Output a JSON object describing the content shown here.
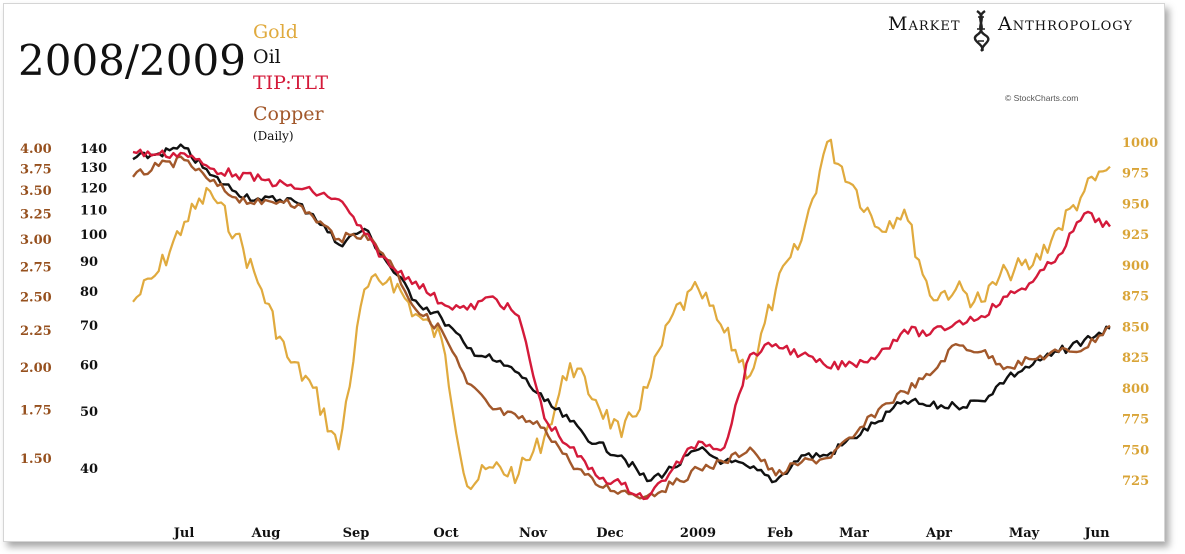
{
  "brand": {
    "word1": "Market",
    "word2": "Anthropology",
    "logo_icon": "dna-helix-icon"
  },
  "credit": "© StockCharts.com",
  "chart_data": {
    "type": "line",
    "title": "2008/2009",
    "subtitle": "(Daily)",
    "legend_placement": "top-left",
    "grid": false,
    "x_ticks": [
      "Jul",
      "Aug",
      "Sep",
      "Oct",
      "Nov",
      "Dec",
      "2009",
      "Feb",
      "Mar",
      "Apr",
      "May",
      "Jun"
    ],
    "x_range": [
      "Jun",
      "Jun"
    ],
    "y_axes": {
      "copper_left": {
        "color": "#96501e",
        "ticks": [
          "4.00",
          "3.75",
          "3.50",
          "3.25",
          "3.00",
          "2.75",
          "2.50",
          "2.25",
          "2.00",
          "1.75",
          "1.50"
        ],
        "scale": "log"
      },
      "oil_left": {
        "color": "#111111",
        "ticks": [
          "140",
          "130",
          "120",
          "110",
          "100",
          "90",
          "80",
          "70",
          "60",
          "50",
          "40"
        ],
        "scale": "log"
      },
      "gold_right": {
        "color": "#d9a437",
        "ticks": [
          "1000",
          "975",
          "950",
          "925",
          "900",
          "875",
          "850",
          "825",
          "800",
          "775",
          "750",
          "725"
        ],
        "ylim": [
          710,
          1010
        ]
      }
    },
    "series": [
      {
        "name": "Gold",
        "color": "#e0aa3e",
        "axis": "gold_right",
        "x": [
          "Jun",
          "Jul",
          "Jul",
          "Aug",
          "Aug",
          "Aug",
          "Sep",
          "Sep",
          "Sep",
          "Oct",
          "Oct",
          "Oct",
          "Oct",
          "Nov",
          "Nov",
          "Nov",
          "Nov",
          "Dec",
          "Dec",
          "Dec",
          "Dec",
          "2009",
          "2009",
          "2009",
          "Feb",
          "Feb",
          "Feb",
          "Mar",
          "Mar",
          "Mar",
          "Mar",
          "Apr",
          "Apr",
          "Apr",
          "May",
          "May",
          "May",
          "Jun",
          "Jun"
        ],
        "values": [
          870,
          895,
          935,
          960,
          925,
          880,
          825,
          800,
          750,
          880,
          890,
          860,
          840,
          720,
          735,
          730,
          760,
          820,
          790,
          760,
          800,
          860,
          880,
          845,
          810,
          880,
          920,
          1000,
          965,
          930,
          945,
          875,
          880,
          870,
          895,
          900,
          930,
          960,
          980
        ]
      },
      {
        "name": "Oil",
        "color": "#111111",
        "axis": "oil_left",
        "x": [
          "Jun",
          "Jul",
          "Jul",
          "Aug",
          "Aug",
          "Aug",
          "Sep",
          "Sep",
          "Sep",
          "Oct",
          "Oct",
          "Oct",
          "Oct",
          "Nov",
          "Nov",
          "Nov",
          "Nov",
          "Dec",
          "Dec",
          "Dec",
          "Dec",
          "2009",
          "2009",
          "2009",
          "Feb",
          "Feb",
          "Feb",
          "Mar",
          "Mar",
          "Mar",
          "Mar",
          "Apr",
          "Apr",
          "Apr",
          "May",
          "May",
          "May",
          "Jun",
          "Jun"
        ],
        "values": [
          134,
          137,
          140,
          126,
          118,
          114,
          115,
          108,
          96,
          102,
          88,
          77,
          72,
          64,
          61,
          58,
          52,
          48,
          44,
          42,
          38,
          40,
          43,
          41,
          40,
          38,
          42,
          42,
          45,
          48,
          52,
          51,
          51,
          52,
          57,
          60,
          63,
          66,
          69
        ]
      },
      {
        "name": "TIP:TLT",
        "color": "#d41a3a",
        "axis": "copper_left",
        "x": [
          "Jun",
          "Jul",
          "Jul",
          "Aug",
          "Aug",
          "Aug",
          "Sep",
          "Sep",
          "Sep",
          "Oct",
          "Oct",
          "Oct",
          "Oct",
          "Nov",
          "Nov",
          "Nov",
          "Nov",
          "Dec",
          "Dec",
          "Dec",
          "Dec",
          "2009",
          "2009",
          "2009",
          "Feb",
          "Feb",
          "Feb",
          "Mar",
          "Mar",
          "Mar",
          "Mar",
          "Apr",
          "Apr",
          "Apr",
          "May",
          "May",
          "May",
          "Jun",
          "Jun"
        ],
        "values": [
          3.95,
          3.92,
          3.93,
          3.75,
          3.68,
          3.62,
          3.55,
          3.48,
          3.4,
          3.05,
          2.75,
          2.62,
          2.45,
          2.4,
          2.5,
          2.35,
          1.7,
          1.55,
          1.42,
          1.38,
          1.32,
          1.45,
          1.58,
          1.55,
          2.08,
          2.15,
          2.08,
          2.0,
          2.02,
          2.08,
          2.25,
          2.22,
          2.3,
          2.35,
          2.5,
          2.62,
          2.85,
          3.25,
          3.12
        ]
      },
      {
        "name": "Copper",
        "color": "#a2582b",
        "axis": "copper_left",
        "x": [
          "Jun",
          "Jul",
          "Jul",
          "Aug",
          "Aug",
          "Aug",
          "Sep",
          "Sep",
          "Sep",
          "Oct",
          "Oct",
          "Oct",
          "Oct",
          "Nov",
          "Nov",
          "Nov",
          "Nov",
          "Dec",
          "Dec",
          "Dec",
          "Dec",
          "2009",
          "2009",
          "2009",
          "Feb",
          "Feb",
          "Feb",
          "Mar",
          "Mar",
          "Mar",
          "Mar",
          "Apr",
          "Apr",
          "Apr",
          "May",
          "May",
          "May",
          "Jun",
          "Jun"
        ],
        "values": [
          3.65,
          3.78,
          3.85,
          3.6,
          3.42,
          3.35,
          3.4,
          3.22,
          3.0,
          3.05,
          2.8,
          2.4,
          2.25,
          1.9,
          1.75,
          1.7,
          1.65,
          1.48,
          1.38,
          1.35,
          1.33,
          1.38,
          1.45,
          1.48,
          1.55,
          1.42,
          1.48,
          1.5,
          1.6,
          1.75,
          1.85,
          1.95,
          2.15,
          2.1,
          2.0,
          2.05,
          2.1,
          2.12,
          2.28
        ]
      }
    ]
  }
}
